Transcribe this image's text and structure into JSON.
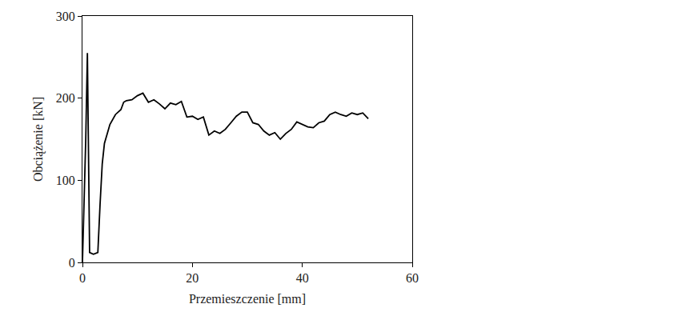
{
  "chart_data": {
    "type": "line",
    "x_label": "Przemieszczenie [mm]",
    "y_label": "Obciążenie [kN]",
    "x": [
      0,
      0.6,
      0.9,
      1.1,
      1.3,
      2.0,
      2.8,
      3.2,
      3.6,
      4.0,
      5.0,
      6.0,
      7.0,
      7.5,
      8.0,
      9.0,
      10.0,
      11.0,
      12.0,
      13.0,
      14.0,
      15.0,
      16.0,
      17.0,
      18.0,
      19.0,
      20.0,
      21.0,
      22.0,
      23.0,
      24.0,
      25.0,
      26.0,
      27.0,
      28.0,
      29.0,
      30.0,
      31.0,
      32.0,
      33.0,
      34.0,
      35.0,
      36.0,
      37.0,
      38.0,
      39.0,
      40.0,
      41.0,
      42.0,
      43.0,
      44.0,
      45.0,
      46.0,
      47.0,
      48.0,
      49.0,
      50.0,
      51.0,
      52.0
    ],
    "values": [
      0,
      150,
      255,
      120,
      12,
      10,
      12,
      70,
      120,
      145,
      168,
      180,
      186,
      195,
      197,
      198,
      203,
      206,
      195,
      198,
      193,
      187,
      194,
      192,
      196,
      177,
      178,
      174,
      177,
      155,
      160,
      157,
      162,
      170,
      178,
      183,
      183,
      170,
      168,
      160,
      155,
      158,
      150,
      157,
      162,
      171,
      168,
      165,
      164,
      170,
      172,
      180,
      183,
      180,
      178,
      182,
      180,
      182,
      175
    ],
    "color": "#000000",
    "xlim": [
      0,
      60
    ],
    "ylim": [
      0,
      300
    ],
    "xticks": [
      0,
      20,
      40,
      60
    ],
    "yticks": [
      0,
      100,
      200,
      300
    ],
    "grid": false
  }
}
